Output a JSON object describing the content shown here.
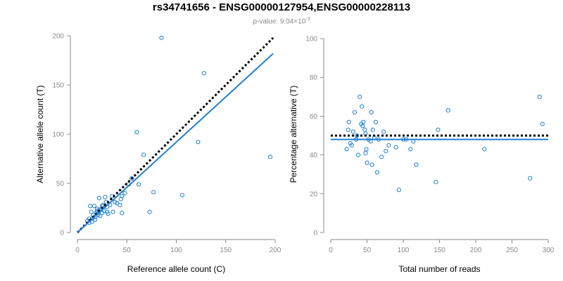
{
  "title": "rs34741656 - ENSG00000127954,ENSG00000228113",
  "subtitle": {
    "prefix": "p-value: 9.04×10",
    "exponent": "-3"
  },
  "colors": {
    "points": "#1f7fd4",
    "fit": "#1f7fd4",
    "expected": "#000000",
    "axis": "#8a8a8a"
  },
  "chart_data": [
    {
      "type": "scatter",
      "xlabel": "Reference allele count (C)",
      "ylabel": "Alternative allele count (T)",
      "xlim": [
        0,
        200
      ],
      "ylim": [
        0,
        200
      ],
      "xticks": [
        0,
        50,
        100,
        150,
        200
      ],
      "yticks": [
        0,
        50,
        100,
        150,
        200
      ],
      "grid": false,
      "points": [
        [
          10,
          12
        ],
        [
          12,
          10
        ],
        [
          12,
          14
        ],
        [
          13,
          27
        ],
        [
          14,
          21
        ],
        [
          15,
          11
        ],
        [
          15,
          14
        ],
        [
          16,
          18
        ],
        [
          17,
          27
        ],
        [
          18,
          13
        ],
        [
          18,
          16
        ],
        [
          19,
          20
        ],
        [
          20,
          22
        ],
        [
          20,
          24
        ],
        [
          21,
          18
        ],
        [
          22,
          23
        ],
        [
          22,
          35
        ],
        [
          23,
          17
        ],
        [
          24,
          24
        ],
        [
          25,
          20
        ],
        [
          25,
          27
        ],
        [
          26,
          28
        ],
        [
          27,
          22
        ],
        [
          28,
          36
        ],
        [
          29,
          31
        ],
        [
          30,
          21
        ],
        [
          30,
          26
        ],
        [
          31,
          19
        ],
        [
          33,
          28
        ],
        [
          35,
          37
        ],
        [
          36,
          21
        ],
        [
          38,
          31
        ],
        [
          40,
          30
        ],
        [
          43,
          28
        ],
        [
          44,
          34
        ],
        [
          45,
          20
        ],
        [
          45,
          37
        ],
        [
          48,
          40
        ],
        [
          52,
          49
        ],
        [
          55,
          55
        ],
        [
          60,
          102
        ],
        [
          62,
          49
        ],
        [
          67,
          79
        ],
        [
          73,
          21
        ],
        [
          77,
          41
        ],
        [
          85,
          198
        ],
        [
          106,
          38
        ],
        [
          122,
          92
        ],
        [
          128,
          162
        ],
        [
          195,
          77
        ]
      ],
      "fit_line": [
        [
          0,
          0
        ],
        [
          198,
          182
        ]
      ],
      "expected_line": [
        [
          0,
          0
        ],
        [
          198,
          198
        ]
      ]
    },
    {
      "type": "scatter",
      "xlabel": "Total number of reads",
      "ylabel": "Percentage alternative (T)",
      "xlim": [
        0,
        300
      ],
      "ylim": [
        0,
        100
      ],
      "xticks": [
        0,
        50,
        100,
        150,
        200,
        250,
        300
      ],
      "yticks": [
        0,
        20,
        40,
        60,
        80,
        100
      ],
      "grid": false,
      "points": [
        [
          22,
          43
        ],
        [
          24,
          53
        ],
        [
          25,
          57
        ],
        [
          27,
          46
        ],
        [
          29,
          45
        ],
        [
          31,
          52
        ],
        [
          33,
          62
        ],
        [
          35,
          48
        ],
        [
          36,
          50
        ],
        [
          38,
          40
        ],
        [
          40,
          70
        ],
        [
          42,
          56
        ],
        [
          43,
          65
        ],
        [
          44,
          55
        ],
        [
          45,
          57
        ],
        [
          47,
          53
        ],
        [
          48,
          51
        ],
        [
          48,
          41
        ],
        [
          49,
          43
        ],
        [
          50,
          36
        ],
        [
          52,
          48
        ],
        [
          55,
          47
        ],
        [
          56,
          62
        ],
        [
          57,
          35
        ],
        [
          58,
          53
        ],
        [
          60,
          49
        ],
        [
          62,
          57
        ],
        [
          64,
          31
        ],
        [
          66,
          48
        ],
        [
          70,
          39
        ],
        [
          73,
          52
        ],
        [
          76,
          42
        ],
        [
          80,
          45
        ],
        [
          90,
          44
        ],
        [
          94,
          22
        ],
        [
          100,
          48
        ],
        [
          104,
          48
        ],
        [
          110,
          43
        ],
        [
          114,
          47
        ],
        [
          118,
          35
        ],
        [
          145,
          26
        ],
        [
          148,
          53
        ],
        [
          162,
          63
        ],
        [
          212,
          43
        ],
        [
          275,
          28
        ],
        [
          288,
          70
        ],
        [
          292,
          56
        ]
      ],
      "fit_y": 48,
      "expected_y": 50
    }
  ]
}
